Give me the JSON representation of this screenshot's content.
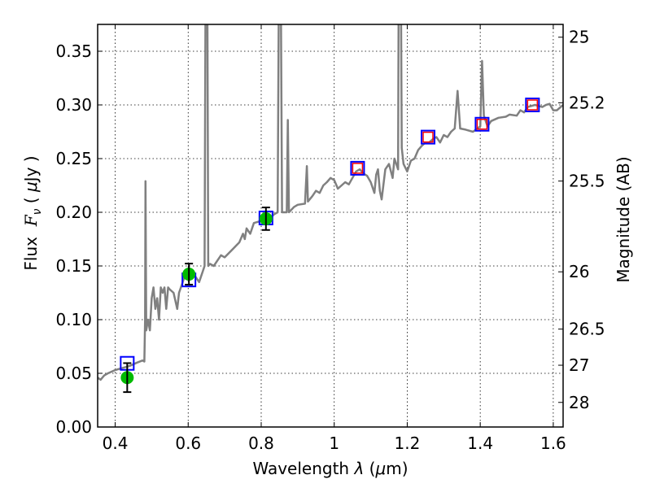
{
  "chart_data": {
    "type": "line",
    "xlabel": "Wavelength  λ (μm)",
    "xlabel_parts": {
      "prefix": "Wavelength  ",
      "symbol": "λ",
      "unit_open": " (",
      "unit_mu": "μ",
      "unit_rest": "m)"
    },
    "ylabel": "Flux  Fν ( μJy )",
    "ylabel_parts": {
      "prefix": "Flux  ",
      "symbol": "F",
      "sub": "ν",
      "open": " ( ",
      "mu": "μ",
      "rest": "Jy )"
    },
    "y2label": "Magnitude (AB)",
    "xlim": [
      0.352,
      1.627
    ],
    "ylim": [
      0,
      0.375
    ],
    "grid": true,
    "xticks": [
      0.4,
      0.6,
      0.8,
      1.0,
      1.2,
      1.4,
      1.6
    ],
    "xtick_labels": [
      "0.4",
      "0.6",
      "0.8",
      "1",
      "1.2",
      "1.4",
      "1.6"
    ],
    "yticks": [
      0,
      0.05,
      0.1,
      0.15,
      0.2,
      0.25,
      0.3,
      0.35
    ],
    "ytick_labels": [
      "0.00",
      "0.05",
      "0.10",
      "0.15",
      "0.20",
      "0.25",
      "0.30",
      "0.35"
    ],
    "y2ticks": [
      25,
      25.2,
      25.5,
      26,
      26.5,
      27,
      28
    ],
    "y2tick_labels": [
      "25",
      "25.2",
      "25.5",
      "26",
      "26.5",
      "27",
      "28"
    ],
    "ab_zeropoint_ujy": 23.9,
    "colors": {
      "spectrum": "#808080",
      "photometry": "#00bb00",
      "model_blue": "#0000ff",
      "model_red": "#ff0000",
      "grid": "#000000"
    },
    "series": [
      {
        "name": "spectrum",
        "type": "line",
        "points": [
          [
            0.352,
            0.046
          ],
          [
            0.36,
            0.044
          ],
          [
            0.37,
            0.048
          ],
          [
            0.38,
            0.05
          ],
          [
            0.4,
            0.053
          ],
          [
            0.42,
            0.055
          ],
          [
            0.44,
            0.057
          ],
          [
            0.46,
            0.06
          ],
          [
            0.475,
            0.062
          ],
          [
            0.48,
            0.061
          ],
          [
            0.482,
            0.1
          ],
          [
            0.483,
            0.229
          ],
          [
            0.485,
            0.09
          ],
          [
            0.49,
            0.1
          ],
          [
            0.495,
            0.09
          ],
          [
            0.5,
            0.12
          ],
          [
            0.505,
            0.13
          ],
          [
            0.51,
            0.11
          ],
          [
            0.515,
            0.12
          ],
          [
            0.52,
            0.1
          ],
          [
            0.525,
            0.13
          ],
          [
            0.53,
            0.125
          ],
          [
            0.535,
            0.13
          ],
          [
            0.54,
            0.11
          ],
          [
            0.545,
            0.13
          ],
          [
            0.55,
            0.128
          ],
          [
            0.56,
            0.125
          ],
          [
            0.57,
            0.11
          ],
          [
            0.575,
            0.125
          ],
          [
            0.58,
            0.13
          ],
          [
            0.59,
            0.14
          ],
          [
            0.6,
            0.145
          ],
          [
            0.61,
            0.145
          ],
          [
            0.62,
            0.14
          ],
          [
            0.63,
            0.135
          ],
          [
            0.64,
            0.145
          ],
          [
            0.645,
            0.15
          ],
          [
            0.648,
            0.45
          ],
          [
            0.652,
            0.45
          ],
          [
            0.655,
            0.15
          ],
          [
            0.66,
            0.152
          ],
          [
            0.67,
            0.15
          ],
          [
            0.68,
            0.155
          ],
          [
            0.69,
            0.16
          ],
          [
            0.7,
            0.158
          ],
          [
            0.72,
            0.165
          ],
          [
            0.74,
            0.172
          ],
          [
            0.75,
            0.18
          ],
          [
            0.755,
            0.175
          ],
          [
            0.76,
            0.185
          ],
          [
            0.77,
            0.18
          ],
          [
            0.78,
            0.19
          ],
          [
            0.8,
            0.192
          ],
          [
            0.82,
            0.193
          ],
          [
            0.835,
            0.198
          ],
          [
            0.845,
            0.2
          ],
          [
            0.849,
            0.45
          ],
          [
            0.853,
            0.45
          ],
          [
            0.857,
            0.2
          ],
          [
            0.87,
            0.2
          ],
          [
            0.873,
            0.286
          ],
          [
            0.876,
            0.2
          ],
          [
            0.89,
            0.205
          ],
          [
            0.9,
            0.207
          ],
          [
            0.92,
            0.208
          ],
          [
            0.925,
            0.243
          ],
          [
            0.928,
            0.21
          ],
          [
            0.94,
            0.215
          ],
          [
            0.95,
            0.22
          ],
          [
            0.96,
            0.218
          ],
          [
            0.97,
            0.225
          ],
          [
            0.98,
            0.228
          ],
          [
            0.99,
            0.232
          ],
          [
            1.0,
            0.23
          ],
          [
            1.01,
            0.222
          ],
          [
            1.02,
            0.225
          ],
          [
            1.03,
            0.228
          ],
          [
            1.04,
            0.226
          ],
          [
            1.05,
            0.232
          ],
          [
            1.06,
            0.238
          ],
          [
            1.07,
            0.24
          ],
          [
            1.08,
            0.236
          ],
          [
            1.09,
            0.234
          ],
          [
            1.1,
            0.228
          ],
          [
            1.11,
            0.218
          ],
          [
            1.115,
            0.235
          ],
          [
            1.12,
            0.24
          ],
          [
            1.125,
            0.22
          ],
          [
            1.13,
            0.212
          ],
          [
            1.14,
            0.24
          ],
          [
            1.15,
            0.245
          ],
          [
            1.16,
            0.232
          ],
          [
            1.165,
            0.25
          ],
          [
            1.17,
            0.245
          ],
          [
            1.175,
            0.24
          ],
          [
            1.177,
            0.45
          ],
          [
            1.182,
            0.45
          ],
          [
            1.185,
            0.26
          ],
          [
            1.19,
            0.245
          ],
          [
            1.2,
            0.238
          ],
          [
            1.21,
            0.248
          ],
          [
            1.22,
            0.25
          ],
          [
            1.23,
            0.258
          ],
          [
            1.24,
            0.262
          ],
          [
            1.25,
            0.265
          ],
          [
            1.26,
            0.265
          ],
          [
            1.27,
            0.268
          ],
          [
            1.28,
            0.27
          ],
          [
            1.29,
            0.265
          ],
          [
            1.3,
            0.272
          ],
          [
            1.31,
            0.27
          ],
          [
            1.32,
            0.275
          ],
          [
            1.33,
            0.278
          ],
          [
            1.338,
            0.313
          ],
          [
            1.345,
            0.278
          ],
          [
            1.36,
            0.277
          ],
          [
            1.38,
            0.275
          ],
          [
            1.4,
            0.28
          ],
          [
            1.405,
            0.341
          ],
          [
            1.41,
            0.29
          ],
          [
            1.42,
            0.28
          ],
          [
            1.43,
            0.285
          ],
          [
            1.45,
            0.288
          ],
          [
            1.47,
            0.289
          ],
          [
            1.48,
            0.291
          ],
          [
            1.5,
            0.29
          ],
          [
            1.51,
            0.295
          ],
          [
            1.52,
            0.293
          ],
          [
            1.53,
            0.298
          ],
          [
            1.55,
            0.3
          ],
          [
            1.56,
            0.299
          ],
          [
            1.57,
            0.298
          ],
          [
            1.58,
            0.3
          ],
          [
            1.59,
            0.301
          ],
          [
            1.6,
            0.295
          ],
          [
            1.61,
            0.295
          ],
          [
            1.627,
            0.3
          ]
        ]
      },
      {
        "name": "photometry",
        "type": "errorbar",
        "points": [
          [
            0.433,
            0.046,
            0.0135
          ],
          [
            0.602,
            0.1424,
            0.0098
          ],
          [
            0.813,
            0.194,
            0.0105
          ]
        ]
      },
      {
        "name": "model-blue",
        "type": "square",
        "points": [
          [
            0.433,
            0.0593
          ],
          [
            0.602,
            0.137
          ],
          [
            0.813,
            0.1947
          ],
          [
            1.064,
            0.241
          ],
          [
            1.257,
            0.27
          ],
          [
            1.405,
            0.282
          ],
          [
            1.543,
            0.3
          ]
        ]
      },
      {
        "name": "model-red",
        "type": "square",
        "points": [
          [
            1.064,
            0.241
          ],
          [
            1.257,
            0.27
          ],
          [
            1.405,
            0.282
          ],
          [
            1.543,
            0.3
          ]
        ]
      }
    ]
  }
}
